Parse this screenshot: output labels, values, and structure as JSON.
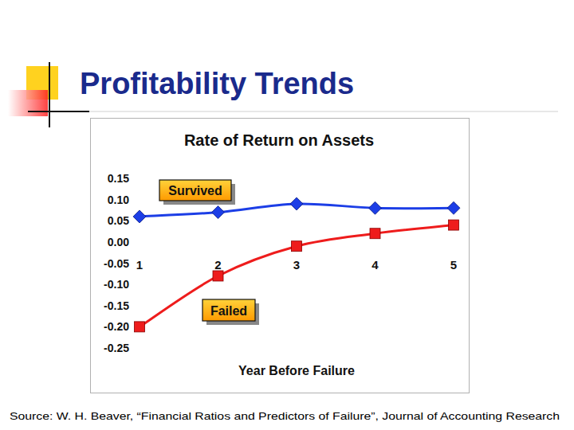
{
  "slide_title": "Profitability Trends",
  "source": "Source: W. H. Beaver, “Financial Ratios and Predictors of Failure”, Journal of Accounting Research",
  "chart_data": {
    "type": "line",
    "title": "Rate of Return on Assets",
    "x_label": "Year Before Failure",
    "categories": [
      "1",
      "2",
      "3",
      "4",
      "5"
    ],
    "series": [
      {
        "name": "Survived",
        "color": "#1c3ee6",
        "marker": "diamond",
        "values": [
          0.06,
          0.07,
          0.09,
          0.08,
          0.08
        ]
      },
      {
        "name": "Failed",
        "color": "#ee1c1c",
        "marker": "square",
        "values": [
          -0.2,
          -0.08,
          -0.01,
          0.02,
          0.04
        ]
      }
    ],
    "ylim": [
      -0.25,
      0.15
    ],
    "yticks": [
      0.15,
      {
        "value": 0.1,
        "label": "0.10"
      },
      0.05,
      {
        "value": 0,
        "label": "0.00"
      },
      -0.05,
      {
        "value": -0.1,
        "label": "-0.10"
      },
      -0.15,
      {
        "value": -0.2,
        "label": "-0.20"
      },
      -0.25
    ],
    "grid": false
  }
}
